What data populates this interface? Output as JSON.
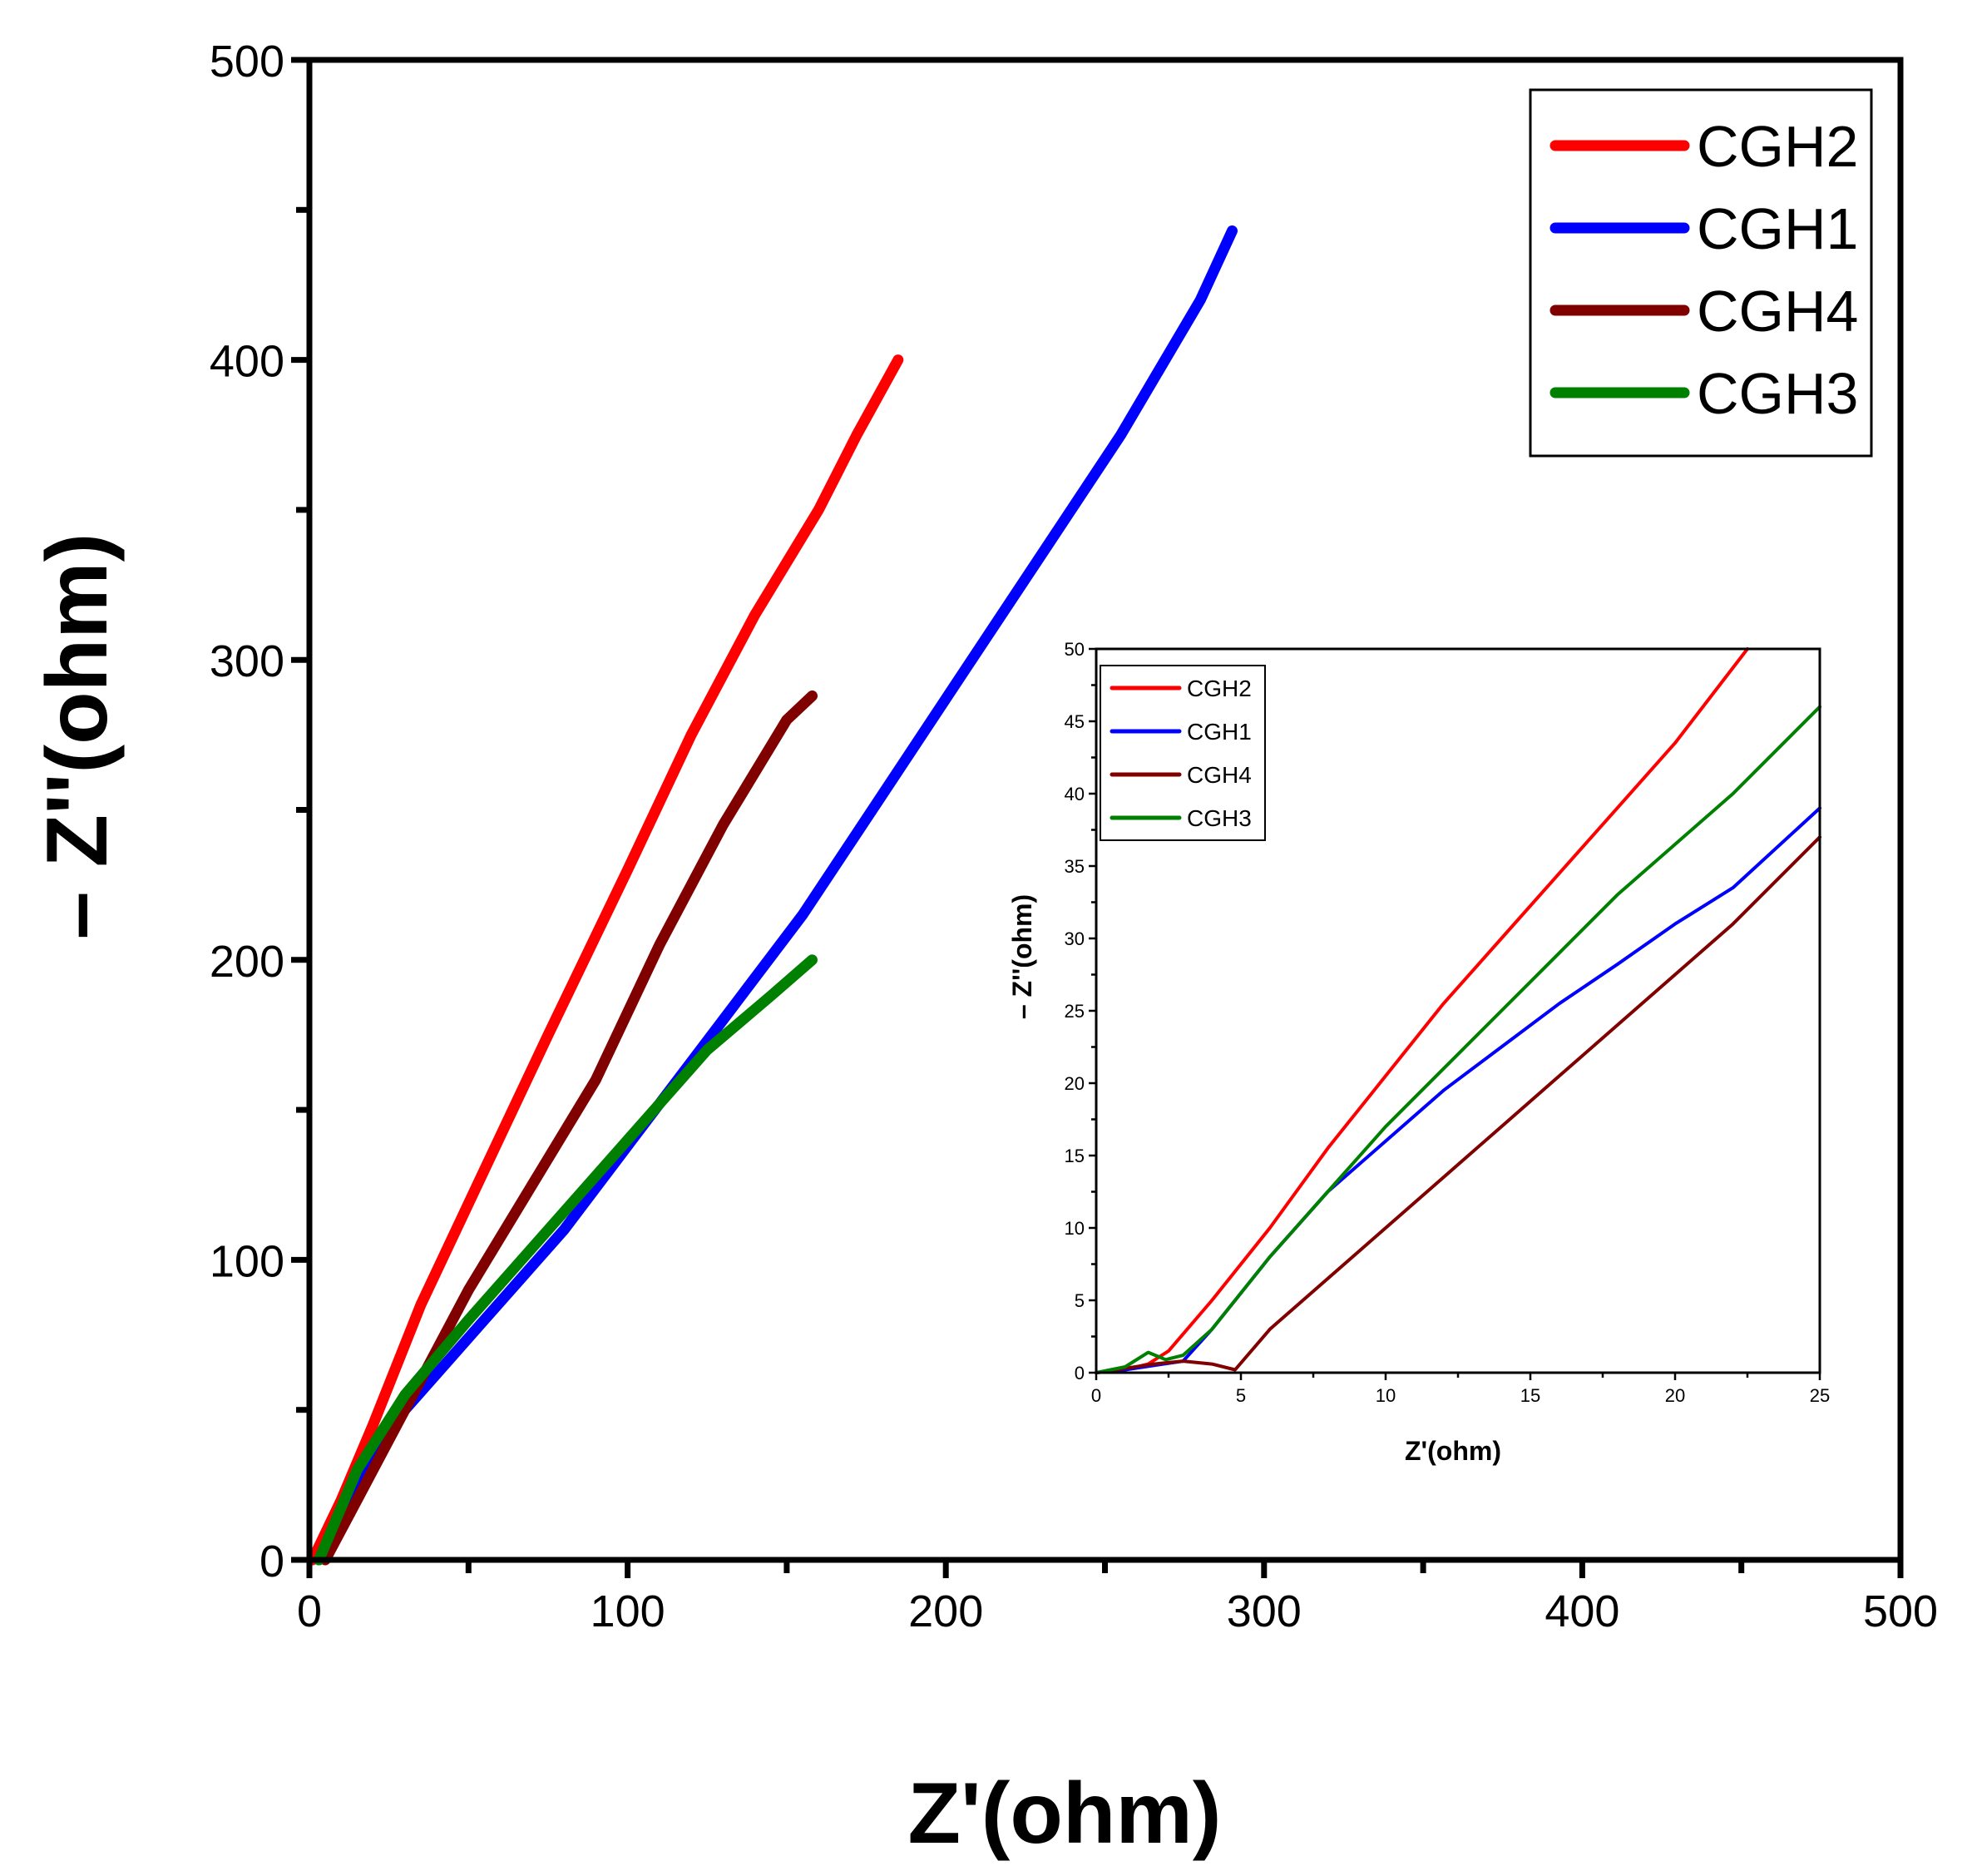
{
  "chart_data": [
    {
      "type": "line",
      "name": "main",
      "title": "",
      "xlabel": "Z'(ohm)",
      "ylabel": "– Z''(ohm)",
      "xlim": [
        0,
        500
      ],
      "ylim": [
        0,
        500
      ],
      "xticks": [
        0,
        100,
        200,
        300,
        400,
        500
      ],
      "yticks": [
        0,
        100,
        200,
        300,
        400,
        500
      ],
      "legend_position": "top-right",
      "series": [
        {
          "name": "CGH2",
          "color": "#ff0000",
          "x": [
            1,
            10,
            20,
            35,
            55,
            75,
            100,
            120,
            140,
            160,
            172,
            185
          ],
          "y": [
            0,
            20,
            45,
            85,
            130,
            175,
            230,
            275,
            315,
            350,
            375,
            400
          ]
        },
        {
          "name": "CGH1",
          "color": "#0000ff",
          "x": [
            3,
            15,
            30,
            55,
            80,
            105,
            130,
            155,
            180,
            205,
            230,
            255,
            280,
            290
          ],
          "y": [
            0,
            25,
            50,
            80,
            110,
            145,
            180,
            215,
            255,
            295,
            335,
            375,
            420,
            443
          ]
        },
        {
          "name": "CGH4",
          "color": "#800000",
          "x": [
            5,
            15,
            30,
            50,
            70,
            90,
            110,
            130,
            150,
            158
          ],
          "y": [
            0,
            20,
            50,
            90,
            125,
            160,
            205,
            245,
            280,
            288
          ]
        },
        {
          "name": "CGH3",
          "color": "#008000",
          "x": [
            3,
            15,
            30,
            50,
            75,
            100,
            125,
            145,
            158
          ],
          "y": [
            0,
            30,
            55,
            80,
            110,
            140,
            170,
            188,
            200
          ]
        }
      ]
    },
    {
      "type": "line",
      "name": "inset",
      "title": "",
      "xlabel": "Z'(ohm)",
      "ylabel": "– Z''(ohm)",
      "xlim": [
        0,
        25
      ],
      "ylim": [
        0,
        50
      ],
      "xticks": [
        0,
        5,
        10,
        15,
        20,
        25
      ],
      "yticks": [
        0,
        5,
        10,
        15,
        20,
        25,
        30,
        35,
        40,
        45,
        50
      ],
      "legend_position": "top-left",
      "series": [
        {
          "name": "CGH2",
          "color": "#ff0000",
          "x": [
            0,
            1,
            1.8,
            2.5,
            4,
            6,
            8,
            10,
            12,
            14,
            16,
            18,
            20,
            22.5
          ],
          "y": [
            0,
            0.2,
            0.6,
            1.5,
            5,
            10,
            15.5,
            20.5,
            25.5,
            30,
            34.5,
            39,
            43.5,
            50
          ]
        },
        {
          "name": "CGH1",
          "color": "#0000ff",
          "x": [
            0,
            1,
            2,
            3,
            4,
            6,
            8,
            10,
            12,
            14,
            16,
            18,
            20,
            22,
            25
          ],
          "y": [
            0,
            0.2,
            0.5,
            0.8,
            3,
            8,
            12.5,
            16,
            19.5,
            22.5,
            25.5,
            28.2,
            31,
            33.5,
            39
          ]
        },
        {
          "name": "CGH4",
          "color": "#800000",
          "x": [
            0,
            1,
            2,
            3,
            4,
            4.8,
            6,
            8,
            10,
            12,
            14,
            16,
            18,
            20,
            22,
            25
          ],
          "y": [
            0,
            0.3,
            0.6,
            0.8,
            0.6,
            0.2,
            3,
            6.5,
            10,
            13.5,
            17,
            20.5,
            24,
            27.5,
            31,
            37
          ]
        },
        {
          "name": "CGH3",
          "color": "#008000",
          "x": [
            0,
            1,
            1.8,
            2.4,
            3,
            4,
            6,
            8,
            10,
            12,
            14,
            16,
            18,
            20,
            22,
            25
          ],
          "y": [
            0,
            0.4,
            1.4,
            0.9,
            1.2,
            3,
            8,
            12.5,
            17,
            21,
            25,
            29,
            33,
            36.5,
            40,
            46
          ]
        }
      ]
    }
  ]
}
